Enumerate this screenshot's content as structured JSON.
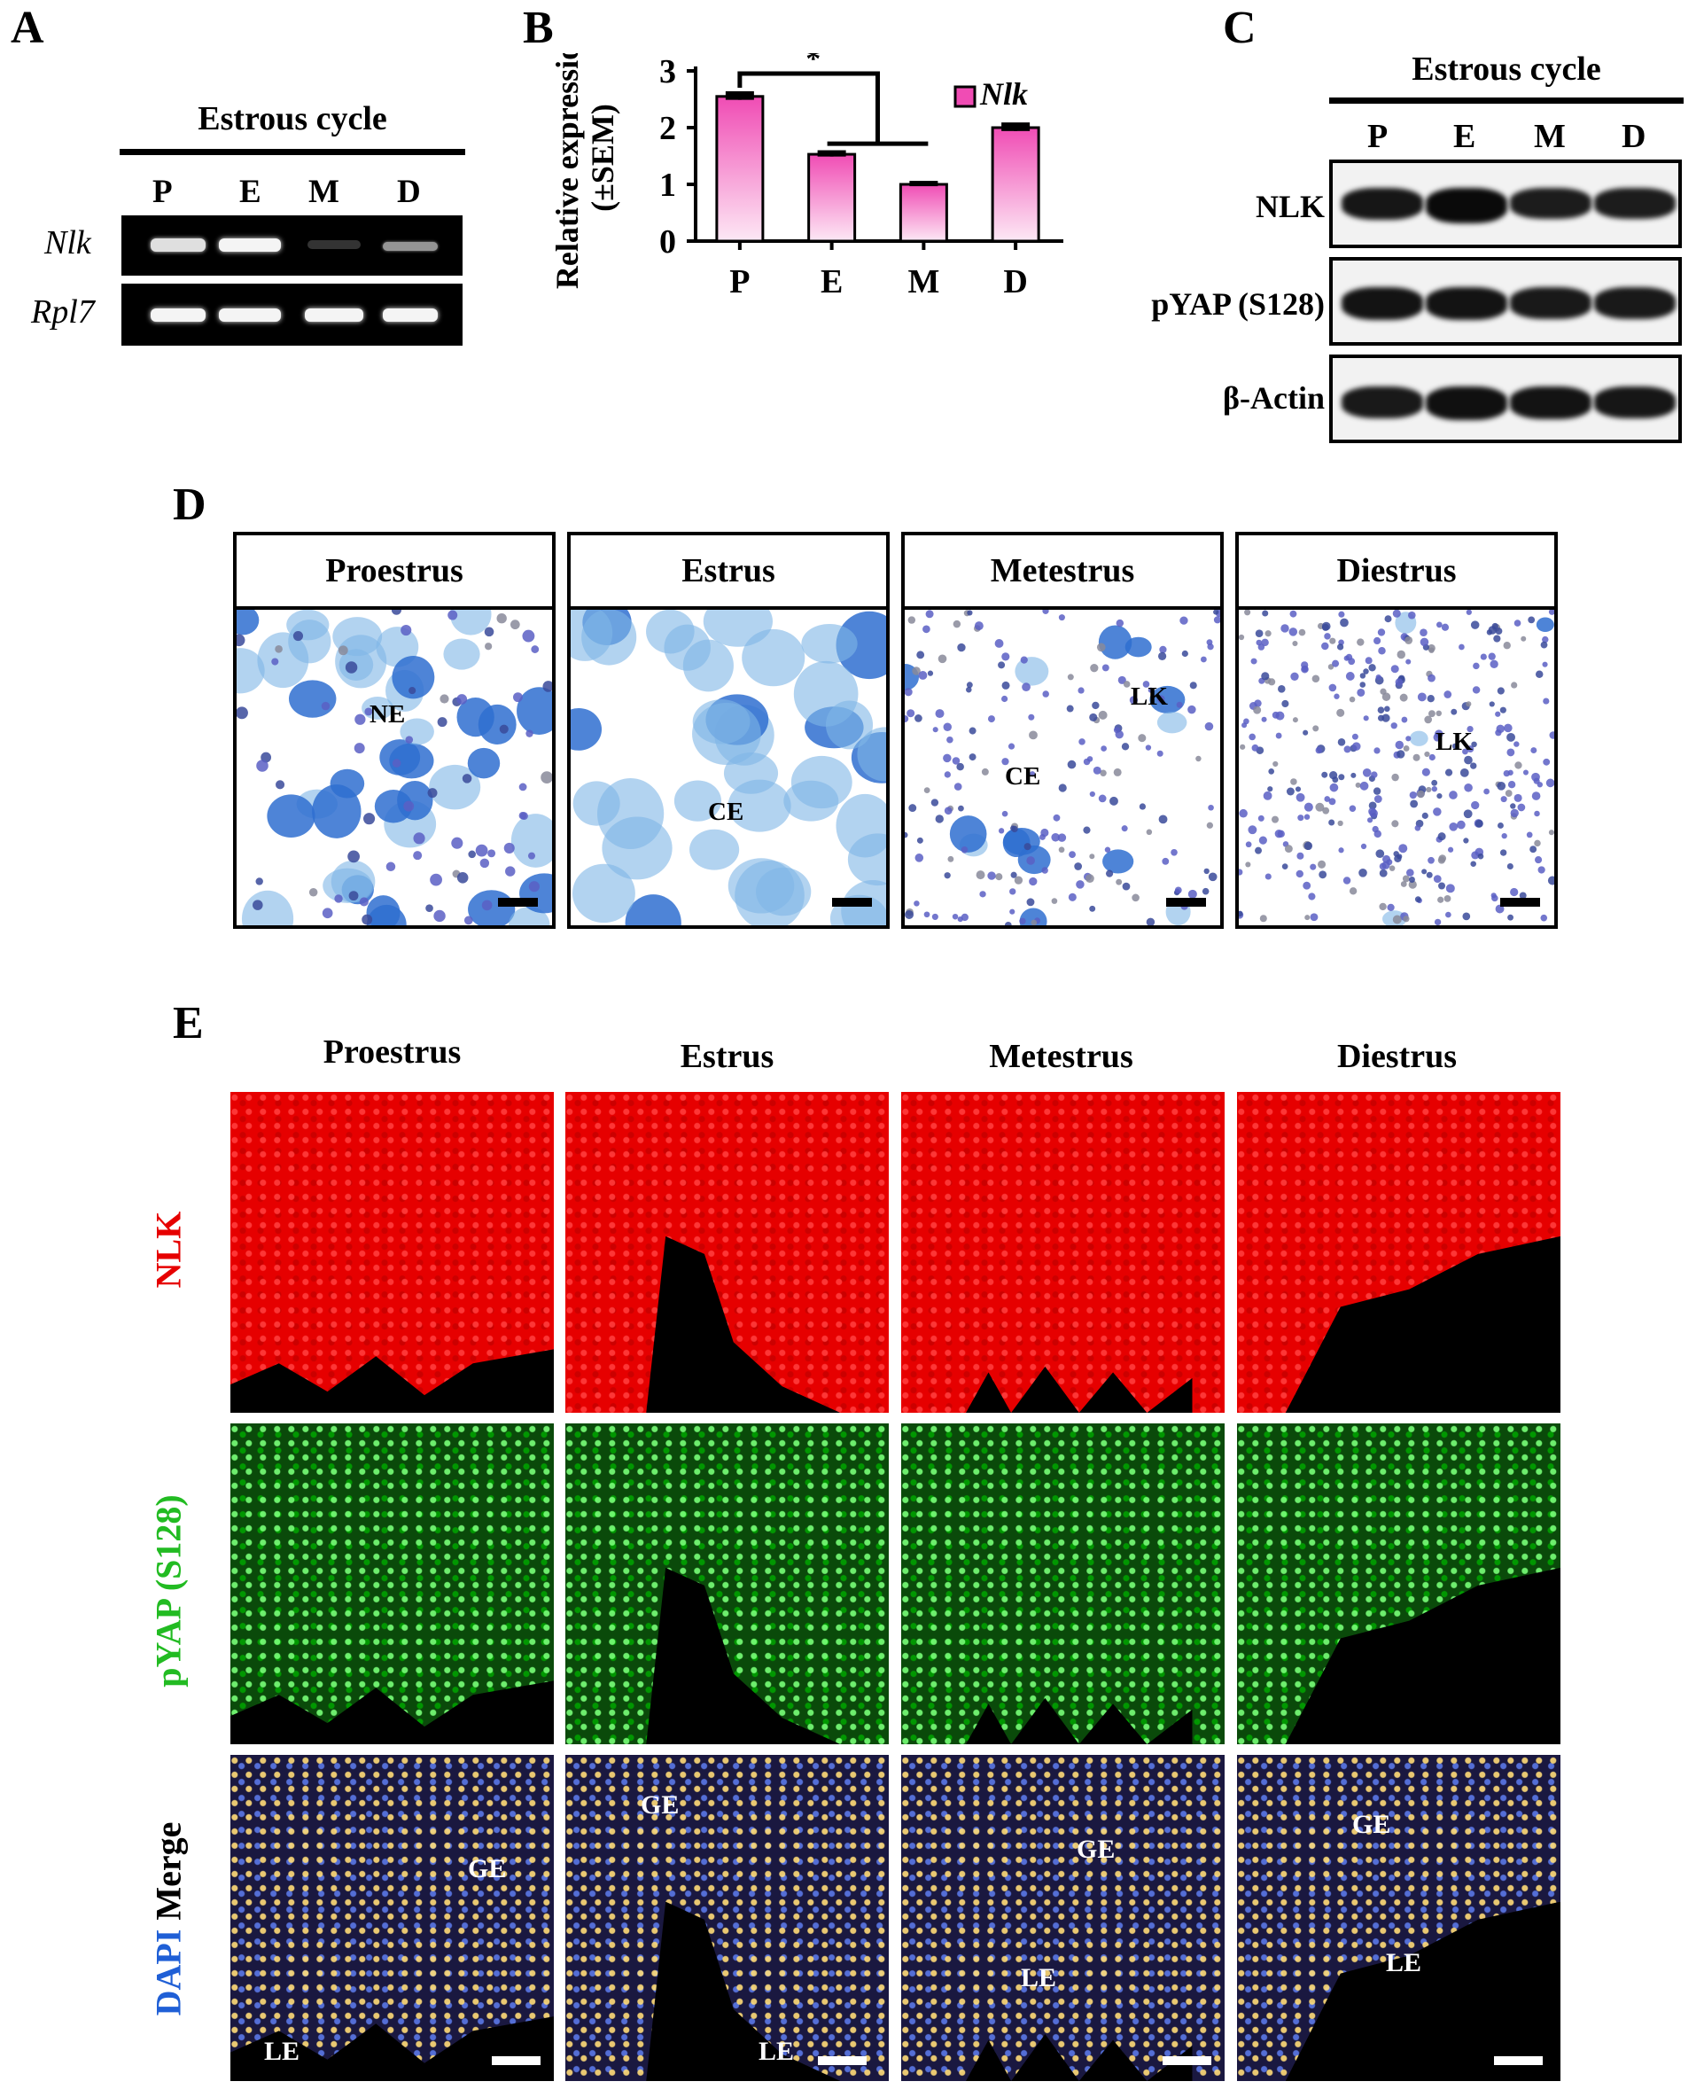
{
  "panels": {
    "A": {
      "letter": "A",
      "header": "Estrous cycle",
      "lanes": [
        "P",
        "E",
        "M",
        "D"
      ],
      "rows": [
        {
          "gene": "Nlk",
          "band_intensity": [
            0.85,
            0.95,
            0.05,
            0.5
          ]
        },
        {
          "gene": "Rpl7",
          "band_intensity": [
            0.95,
            0.95,
            0.95,
            0.95
          ]
        }
      ]
    },
    "B": {
      "letter": "B",
      "significance": "*",
      "chart_data": {
        "type": "bar",
        "categories": [
          "P",
          "E",
          "M",
          "D"
        ],
        "series": [
          {
            "name": "Nlk",
            "values": [
              2.55,
              1.53,
              1.0,
              2.0
            ],
            "errors": [
              0.06,
              0.04,
              0.03,
              0.06
            ]
          }
        ],
        "xlabel": "",
        "ylabel": "Relative expression (±SEM)",
        "ylabel_line1": "Relative expression",
        "ylabel_line2": "(±SEM)",
        "ylim": [
          0,
          3
        ],
        "yticks": [
          "0",
          "1",
          "2",
          "3"
        ],
        "legend": "top-right",
        "bar_color_top": "#f04cb4",
        "bar_color_bottom": "#fde8f5"
      }
    },
    "C": {
      "letter": "C",
      "header": "Estrous cycle",
      "lanes": [
        "P",
        "E",
        "M",
        "D"
      ],
      "rows": [
        {
          "label": "NLK",
          "band_intensity": [
            0.8,
            1.0,
            0.7,
            0.7
          ]
        },
        {
          "label": "pYAP (S128)",
          "band_intensity": [
            0.85,
            0.85,
            0.75,
            0.75
          ]
        },
        {
          "label": "β-Actin",
          "band_intensity": [
            0.75,
            0.9,
            0.85,
            0.8
          ]
        }
      ]
    },
    "D": {
      "letter": "D",
      "stages": [
        {
          "title": "Proestrus",
          "labels": [
            "NE"
          ]
        },
        {
          "title": "Estrus",
          "labels": [
            "CE"
          ]
        },
        {
          "title": "Metestrus",
          "labels": [
            "LK",
            "CE"
          ]
        },
        {
          "title": "Diestrus",
          "labels": [
            "LK"
          ]
        }
      ]
    },
    "E": {
      "letter": "E",
      "stages": [
        "Proestrus",
        "Estrus",
        "Metestrus",
        "Diestrus"
      ],
      "row_labels": {
        "nlk": "NLK",
        "pyap": "pYAP (S128)",
        "dapi": "DAPI",
        "merge": "Merge"
      },
      "merge_labels": [
        {
          "ge": "GE",
          "le": "LE"
        },
        {
          "ge": "GE",
          "le": "LE"
        },
        {
          "ge": "GE",
          "le": "LE"
        },
        {
          "ge": "GE",
          "le": "LE"
        }
      ],
      "colors": {
        "nlk": "#e60000",
        "pyap": "#22cc22",
        "dapi": "#1f5fd6"
      }
    }
  }
}
